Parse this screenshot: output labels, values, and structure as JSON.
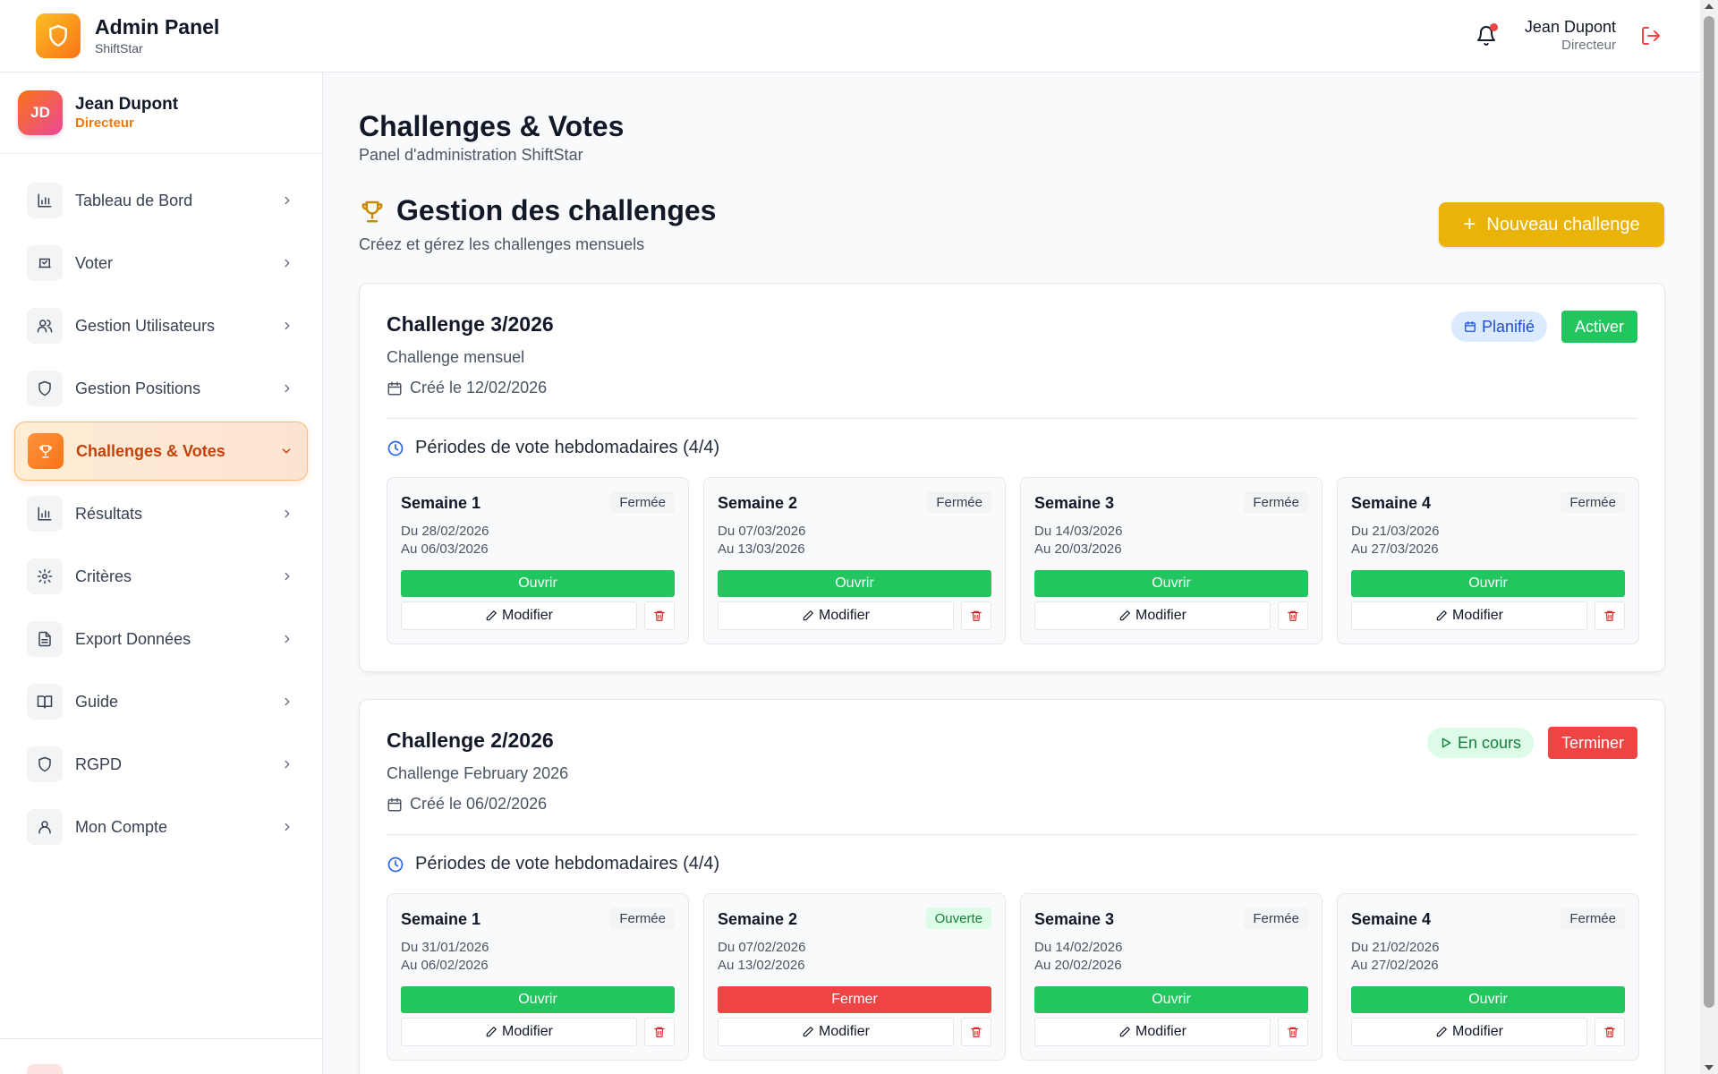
{
  "header": {
    "app_title": "Admin Panel",
    "app_subtitle": "ShiftStar",
    "user_name": "Jean Dupont",
    "user_role": "Directeur",
    "notification_dot_color": "#ef4444"
  },
  "sidebar": {
    "user": {
      "initials": "JD",
      "name": "Jean Dupont",
      "role": "Directeur"
    },
    "items": [
      {
        "label": "Tableau de Bord",
        "icon": "bar-chart-icon"
      },
      {
        "label": "Voter",
        "icon": "vote-icon"
      },
      {
        "label": "Gestion Utilisateurs",
        "icon": "users-icon"
      },
      {
        "label": "Gestion Positions",
        "icon": "shield-icon"
      },
      {
        "label": "Challenges & Votes",
        "icon": "trophy-icon",
        "active": true
      },
      {
        "label": "Résultats",
        "icon": "bar-chart-icon"
      },
      {
        "label": "Critères",
        "icon": "gear-icon"
      },
      {
        "label": "Export Données",
        "icon": "file-text-icon"
      },
      {
        "label": "Guide",
        "icon": "book-icon"
      },
      {
        "label": "RGPD",
        "icon": "shield-icon"
      },
      {
        "label": "Mon Compte",
        "icon": "user-icon"
      }
    ]
  },
  "main": {
    "page_title": "Challenges & Votes",
    "page_subtitle": "Panel d'administration ShiftStar",
    "section_title": "Gestion des challenges",
    "section_subtitle": "Créez et gérez les challenges mensuels",
    "new_button_label": "Nouveau challenge",
    "accent_color": "#eab308"
  },
  "challenges": [
    {
      "title": "Challenge 3/2026",
      "description": "Challenge mensuel",
      "created": "Créé le 12/02/2026",
      "status": "Planifié",
      "action": "Activer",
      "periods_title": "Périodes de vote hebdomadaires (4/4)",
      "weeks": [
        {
          "name": "Semaine 1",
          "state": "Fermée",
          "from": "Du 28/02/2026",
          "to": "Au 06/03/2026",
          "main_action": "Ouvrir",
          "edit": "Modifier"
        },
        {
          "name": "Semaine 2",
          "state": "Fermée",
          "from": "Du 07/03/2026",
          "to": "Au 13/03/2026",
          "main_action": "Ouvrir",
          "edit": "Modifier"
        },
        {
          "name": "Semaine 3",
          "state": "Fermée",
          "from": "Du 14/03/2026",
          "to": "Au 20/03/2026",
          "main_action": "Ouvrir",
          "edit": "Modifier"
        },
        {
          "name": "Semaine 4",
          "state": "Fermée",
          "from": "Du 21/03/2026",
          "to": "Au 27/03/2026",
          "main_action": "Ouvrir",
          "edit": "Modifier"
        }
      ]
    },
    {
      "title": "Challenge 2/2026",
      "description": "Challenge February 2026",
      "created": "Créé le 06/02/2026",
      "status": "En cours",
      "action": "Terminer",
      "periods_title": "Périodes de vote hebdomadaires (4/4)",
      "weeks": [
        {
          "name": "Semaine 1",
          "state": "Fermée",
          "from": "Du 31/01/2026",
          "to": "Au 06/02/2026",
          "main_action": "Ouvrir",
          "edit": "Modifier"
        },
        {
          "name": "Semaine 2",
          "state": "Ouverte",
          "from": "Du 07/02/2026",
          "to": "Au 13/02/2026",
          "main_action": "Fermer",
          "edit": "Modifier"
        },
        {
          "name": "Semaine 3",
          "state": "Fermée",
          "from": "Du 14/02/2026",
          "to": "Au 20/02/2026",
          "main_action": "Ouvrir",
          "edit": "Modifier"
        },
        {
          "name": "Semaine 4",
          "state": "Fermée",
          "from": "Du 21/02/2026",
          "to": "Au 27/02/2026",
          "main_action": "Ouvrir",
          "edit": "Modifier"
        }
      ]
    }
  ]
}
